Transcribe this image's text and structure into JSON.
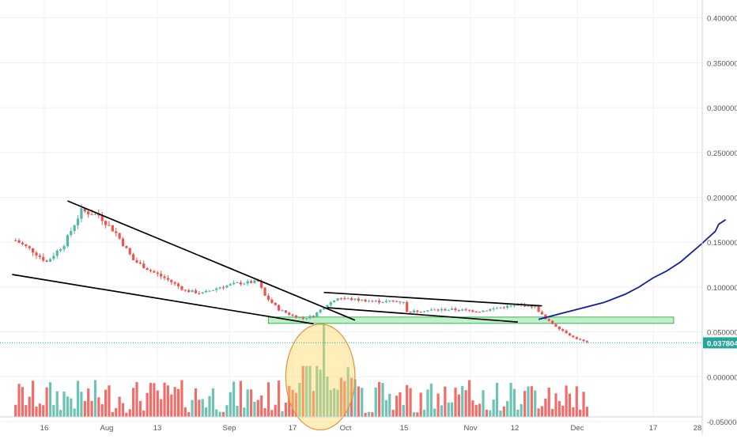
{
  "colors": {
    "up": "#53b9a7",
    "down": "#ef5350",
    "grid": "#eef1f4",
    "axis": "#555555",
    "trendline": "#000000",
    "projection": "#0d1f9c",
    "support_zone_fill": "#bff0c9",
    "support_zone_stroke": "#38b24c",
    "price_line": "#26a69a",
    "ellipse_fill": "#ffd966",
    "ellipse_stroke": "#e69138"
  },
  "chart_data": {
    "type": "candlestick",
    "x_ticks": [
      "16",
      "Aug",
      "13",
      "Sep",
      "17",
      "Oct",
      "15",
      "Nov",
      "12",
      "Dec",
      "17",
      "28"
    ],
    "y_ticks": [
      "0.400000",
      "0.350000",
      "0.300000",
      "0.250000",
      "0.200000",
      "0.150000",
      "0.100000",
      "0.050000",
      "0.000000",
      "-0.050000"
    ],
    "ylim": [
      -0.065,
      0.42
    ],
    "last_price_label": "0.037804",
    "last_price": 0.0378,
    "price_start": 0.152,
    "price_checkpoints": [
      [
        0,
        0.152
      ],
      [
        5,
        0.14
      ],
      [
        9,
        0.128
      ],
      [
        14,
        0.148
      ],
      [
        19,
        0.185
      ],
      [
        24,
        0.18
      ],
      [
        29,
        0.16
      ],
      [
        34,
        0.13
      ],
      [
        39,
        0.118
      ],
      [
        44,
        0.108
      ],
      [
        49,
        0.096
      ],
      [
        54,
        0.093
      ],
      [
        59,
        0.1
      ],
      [
        64,
        0.104
      ],
      [
        70,
        0.106
      ],
      [
        72,
        0.09
      ],
      [
        76,
        0.075
      ],
      [
        80,
        0.068
      ],
      [
        83,
        0.065
      ],
      [
        86,
        0.068
      ],
      [
        89,
        0.078
      ],
      [
        93,
        0.088
      ],
      [
        98,
        0.086
      ],
      [
        104,
        0.084
      ],
      [
        112,
        0.084
      ],
      [
        113,
        0.072
      ],
      [
        118,
        0.074
      ],
      [
        126,
        0.075
      ],
      [
        134,
        0.073
      ],
      [
        141,
        0.078
      ],
      [
        146,
        0.08
      ],
      [
        150,
        0.078
      ],
      [
        153,
        0.064
      ],
      [
        157,
        0.054
      ],
      [
        161,
        0.044
      ],
      [
        165,
        0.038
      ]
    ],
    "volume_baseline": -0.055,
    "volume_max_level": 0.012,
    "volume_spike_level": 0.058,
    "volume_spike_index": 89,
    "trendlines": [
      {
        "from": [
          15,
          0.196
        ],
        "to": [
          98,
          0.063
        ]
      },
      {
        "from": [
          -1,
          0.114
        ],
        "to": [
          86,
          0.059
        ]
      },
      {
        "from": [
          89,
          0.094
        ],
        "to": [
          152,
          0.079
        ]
      },
      {
        "from": [
          90,
          0.077
        ],
        "to": [
          145,
          0.061
        ]
      }
    ],
    "support_zone": {
      "x_start": 73,
      "x_end": 190,
      "low": 0.0595,
      "high": 0.0665
    },
    "highlight_ellipse": {
      "x_center": 88,
      "y_center": -0.0003,
      "x_radius": 10,
      "y_radius": 0.059
    },
    "projection": [
      [
        151,
        0.064
      ],
      [
        157,
        0.07
      ],
      [
        163,
        0.076
      ],
      [
        170,
        0.083
      ],
      [
        176,
        0.092
      ],
      [
        180,
        0.1
      ],
      [
        184,
        0.11
      ],
      [
        188,
        0.118
      ],
      [
        192,
        0.128
      ],
      [
        195,
        0.138
      ],
      [
        198,
        0.148
      ],
      [
        200,
        0.155
      ],
      [
        202,
        0.162
      ],
      [
        203,
        0.17
      ],
      [
        205,
        0.175
      ]
    ]
  }
}
